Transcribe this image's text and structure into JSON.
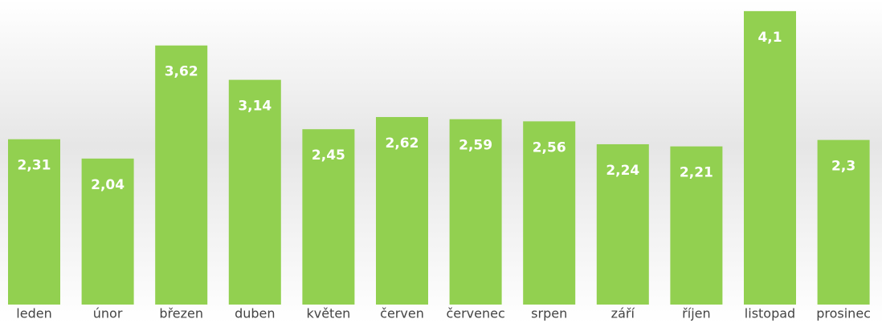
{
  "chart_data": {
    "type": "bar",
    "categories": [
      "leden",
      "únor",
      "březen",
      "duben",
      "květen",
      "červen",
      "červenec",
      "srpen",
      "září",
      "říjen",
      "listopad",
      "prosinec"
    ],
    "values": [
      2.31,
      2.04,
      3.62,
      3.14,
      2.45,
      2.62,
      2.59,
      2.56,
      2.24,
      2.21,
      4.1,
      2.3
    ],
    "value_labels": [
      "2,31",
      "2,04",
      "3,62",
      "3,14",
      "2,45",
      "2,62",
      "2,59",
      "2,56",
      "2,24",
      "2,21",
      "4,1",
      "2,3"
    ],
    "color": "#92d050",
    "ylim": [
      0,
      4.5
    ]
  }
}
